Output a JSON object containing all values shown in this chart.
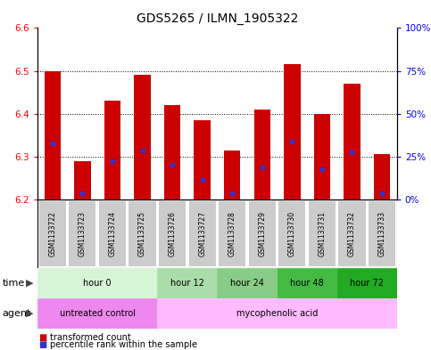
{
  "title": "GDS5265 / ILMN_1905322",
  "samples": [
    "GSM1133722",
    "GSM1133723",
    "GSM1133724",
    "GSM1133725",
    "GSM1133726",
    "GSM1133727",
    "GSM1133728",
    "GSM1133729",
    "GSM1133730",
    "GSM1133731",
    "GSM1133732",
    "GSM1133733"
  ],
  "bar_tops": [
    6.5,
    6.29,
    6.43,
    6.49,
    6.42,
    6.385,
    6.315,
    6.41,
    6.515,
    6.4,
    6.47,
    6.305
  ],
  "bar_bottom": 6.2,
  "blue_dot_values": [
    6.33,
    6.215,
    6.29,
    6.315,
    6.28,
    6.245,
    6.215,
    6.275,
    6.335,
    6.27,
    6.31,
    6.215
  ],
  "ylim": [
    6.2,
    6.6
  ],
  "yticks_left": [
    6.2,
    6.3,
    6.4,
    6.5,
    6.6
  ],
  "yticks_right": [
    0,
    25,
    50,
    75,
    100
  ],
  "bar_color": "#cc0000",
  "blue_dot_color": "#3333cc",
  "dotted_line_y": [
    6.3,
    6.4,
    6.5
  ],
  "time_groups": [
    {
      "label": "hour 0",
      "start": 0,
      "end": 4,
      "color": "#d6f5d6"
    },
    {
      "label": "hour 12",
      "start": 4,
      "end": 6,
      "color": "#aaddaa"
    },
    {
      "label": "hour 24",
      "start": 6,
      "end": 8,
      "color": "#88cc88"
    },
    {
      "label": "hour 48",
      "start": 8,
      "end": 10,
      "color": "#44bb44"
    },
    {
      "label": "hour 72",
      "start": 10,
      "end": 12,
      "color": "#22aa22"
    }
  ],
  "agent_groups": [
    {
      "label": "untreated control",
      "start": 0,
      "end": 4,
      "color": "#ee88ee"
    },
    {
      "label": "mycophenolic acid",
      "start": 4,
      "end": 12,
      "color": "#ffbbff"
    }
  ],
  "legend_items": [
    {
      "label": "transformed count",
      "color": "#cc0000"
    },
    {
      "label": "percentile rank within the sample",
      "color": "#3333cc"
    }
  ],
  "bar_width": 0.55,
  "title_fontsize": 10,
  "bg_color": "#ffffff",
  "sample_bg_color": "#cccccc"
}
